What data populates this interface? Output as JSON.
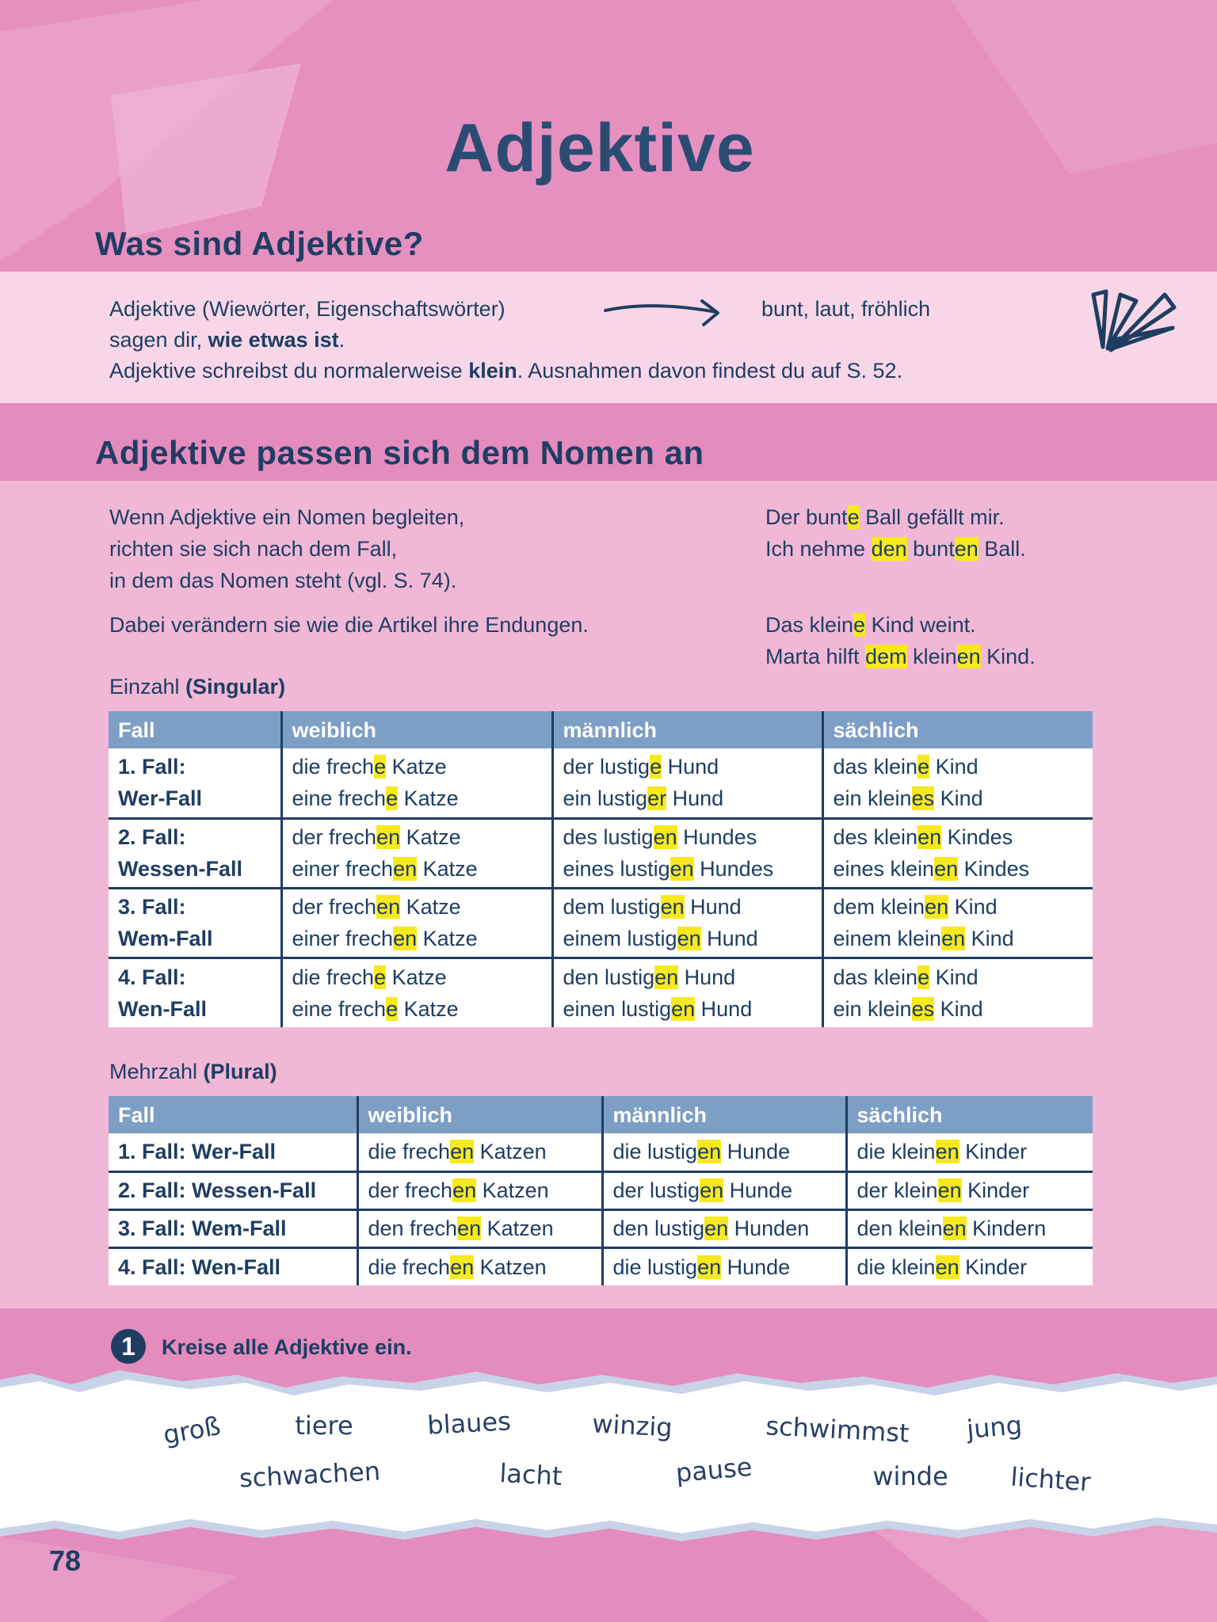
{
  "title": "Adjektive",
  "section1": {
    "heading": "Was sind Adjektive?",
    "lines": [
      [
        "Adjektive (Wiewörter, Eigenschaftswörter)"
      ],
      [
        "sagen dir, ",
        "wie etwas ist",
        "."
      ],
      [
        "Adjektive schreibst du normalerweise ",
        "klein",
        ". Ausnahmen davon findest du auf S. 52."
      ]
    ],
    "examples": "bunt, laut, fröhlich"
  },
  "section2": {
    "heading": "Adjektive passen sich dem Nomen an",
    "paragraph": [
      "Wenn Adjektive ein Nomen begleiten,",
      "richten sie sich nach dem Fall,",
      "in dem das Nomen steht (vgl. S. 74)."
    ],
    "note": "Dabei verändern sie wie die Artikel ihre Endungen.",
    "examples": [
      [
        [
          "Der bunt",
          "e",
          " Ball gefällt mir."
        ],
        [
          "Ich nehme ",
          "den",
          " bunt",
          "en",
          " Ball."
        ]
      ],
      [
        [
          "Das klein",
          "e",
          " Kind weint."
        ],
        [
          "Marta hilft ",
          "dem",
          " klein",
          "en",
          " Kind."
        ]
      ]
    ]
  },
  "singular": {
    "label": [
      "Einzahl",
      " (Singular)"
    ],
    "header": [
      "Fall",
      "weiblich",
      "männlich",
      "sächlich"
    ],
    "rows": [
      [
        [
          "1. Fall:",
          "Wer-Fall"
        ],
        [
          [
            "die frech",
            "e",
            " Katze"
          ],
          [
            "eine frech",
            "e",
            " Katze"
          ]
        ],
        [
          [
            "der lustig",
            "e",
            " Hund"
          ],
          [
            "ein lustig",
            "er",
            " Hund"
          ]
        ],
        [
          [
            "das klein",
            "e",
            " Kind"
          ],
          [
            "ein klein",
            "es",
            " Kind"
          ]
        ]
      ],
      [
        [
          "2. Fall:",
          "Wessen-Fall"
        ],
        [
          [
            "der frech",
            "en",
            " Katze"
          ],
          [
            "einer frech",
            "en",
            " Katze"
          ]
        ],
        [
          [
            "des lustig",
            "en",
            " Hundes"
          ],
          [
            "eines lustig",
            "en",
            " Hundes"
          ]
        ],
        [
          [
            "des klein",
            "en",
            " Kindes"
          ],
          [
            "eines klein",
            "en",
            " Kindes"
          ]
        ]
      ],
      [
        [
          "3. Fall:",
          "Wem-Fall"
        ],
        [
          [
            "der frech",
            "en",
            " Katze"
          ],
          [
            "einer frech",
            "en",
            " Katze"
          ]
        ],
        [
          [
            "dem lustig",
            "en",
            " Hund"
          ],
          [
            "einem lustig",
            "en",
            " Hund"
          ]
        ],
        [
          [
            "dem klein",
            "en",
            " Kind"
          ],
          [
            "einem klein",
            "en",
            " Kind"
          ]
        ]
      ],
      [
        [
          "4. Fall:",
          "Wen-Fall"
        ],
        [
          [
            "die frech",
            "e",
            " Katze"
          ],
          [
            "eine frech",
            "e",
            " Katze"
          ]
        ],
        [
          [
            "den lustig",
            "en",
            " Hund"
          ],
          [
            "einen lustig",
            "en",
            " Hund"
          ]
        ],
        [
          [
            "das klein",
            "e",
            " Kind"
          ],
          [
            "ein klein",
            "es",
            " Kind"
          ]
        ]
      ]
    ]
  },
  "plural": {
    "label": [
      "Mehrzahl",
      " (Plural)"
    ],
    "header": [
      "Fall",
      "weiblich",
      "männlich",
      "sächlich"
    ],
    "rows": [
      [
        "1. Fall: Wer-Fall",
        [
          "die frech",
          "en",
          " Katzen"
        ],
        [
          "die lustig",
          "en",
          " Hunde"
        ],
        [
          "die klein",
          "en",
          " Kinder"
        ]
      ],
      [
        "2. Fall: Wessen-Fall",
        [
          "der frech",
          "en",
          " Katzen"
        ],
        [
          "der lustig",
          "en",
          " Hunde"
        ],
        [
          "der klein",
          "en",
          " Kinder"
        ]
      ],
      [
        "3. Fall: Wem-Fall",
        [
          "den frech",
          "en",
          " Katzen"
        ],
        [
          "den lustig",
          "en",
          " Hunden"
        ],
        [
          "den klein",
          "en",
          " Kindern"
        ]
      ],
      [
        "4. Fall: Wen-Fall",
        [
          "die frech",
          "en",
          " Katzen"
        ],
        [
          "die lustig",
          "en",
          " Hunde"
        ],
        [
          "die klein",
          "en",
          " Kinder"
        ]
      ]
    ]
  },
  "exercise": {
    "number": "1",
    "instruction": "Kreise alle Adjektive ein.",
    "words": [
      "groß",
      "tiere",
      "blaues",
      "winzig",
      "schwimmst",
      "jung",
      "schwachen",
      "lacht",
      "pause",
      "winde",
      "lichter"
    ]
  },
  "page_number": "78"
}
